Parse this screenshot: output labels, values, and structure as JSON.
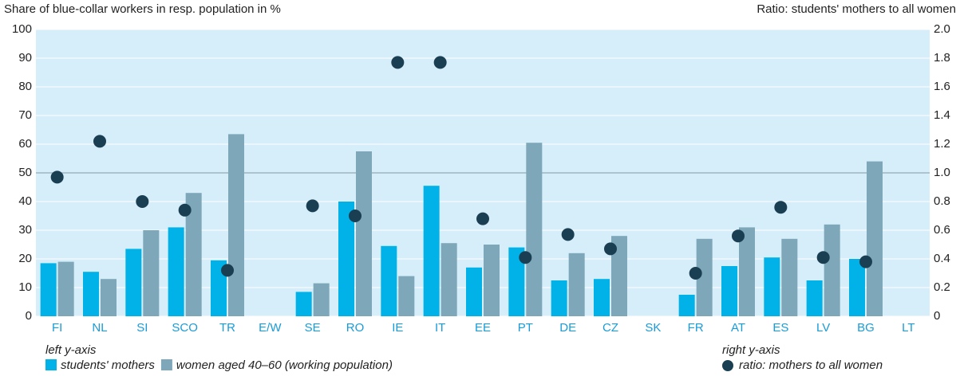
{
  "chart_data": {
    "type": "bar",
    "y_axis_title": "Share of blue-collar workers in resp. population in %",
    "y2_axis_title": "Ratio: students' mothers to all women",
    "categories": [
      "FI",
      "NL",
      "SI",
      "SCO",
      "TR",
      "E/W",
      "SE",
      "RO",
      "IE",
      "IT",
      "EE",
      "PT",
      "DE",
      "CZ",
      "SK",
      "FR",
      "AT",
      "ES",
      "LV",
      "BG",
      "LT"
    ],
    "series": [
      {
        "name": "students' mothers",
        "color": "#00b2e8",
        "type": "bar",
        "values": [
          18.5,
          15.5,
          23.5,
          31,
          19.5,
          null,
          8.5,
          40,
          24.5,
          45.5,
          17,
          24,
          12.5,
          13,
          null,
          7.5,
          17.5,
          20.5,
          12.5,
          20,
          null
        ]
      },
      {
        "name": "women aged 40–60 (working population)",
        "color": "#7ea7ba",
        "type": "bar",
        "values": [
          19,
          13,
          30,
          43,
          63.5,
          null,
          11.5,
          57.5,
          14,
          25.5,
          25,
          60.5,
          22,
          28,
          null,
          27,
          31,
          27,
          32,
          54,
          null
        ]
      },
      {
        "name": "ratio: mothers to all women",
        "color": "#1b3f52",
        "type": "scatter",
        "axis": "y2",
        "values": [
          0.97,
          1.22,
          0.8,
          0.74,
          0.32,
          null,
          0.77,
          0.7,
          1.77,
          1.77,
          0.68,
          0.41,
          0.57,
          0.47,
          null,
          0.3,
          0.56,
          0.76,
          0.41,
          0.38,
          null
        ]
      }
    ],
    "legend_left_title": "left y-axis",
    "legend_right_title": "right y-axis",
    "ylim": [
      0,
      100
    ],
    "yticks": [
      0,
      10,
      20,
      30,
      40,
      50,
      60,
      70,
      80,
      90,
      100
    ],
    "y2lim": [
      0,
      2
    ],
    "y2ticks": [
      0,
      {
        "value": 0.2,
        "label": "0.2"
      },
      {
        "value": 0.4,
        "label": "0.4"
      },
      {
        "value": 0.6,
        "label": "0.6"
      },
      {
        "value": 0.8,
        "label": "0.8"
      },
      {
        "value": 1,
        "label": "1.0"
      },
      {
        "value": 1.2,
        "label": "1.2"
      },
      {
        "value": 1.4,
        "label": "1.4"
      },
      {
        "value": 1.6,
        "label": "1.6"
      },
      {
        "value": 1.8,
        "label": "1.8"
      },
      {
        "value": 2,
        "label": "2.0"
      }
    ],
    "reference_line": 50,
    "grid": true
  }
}
